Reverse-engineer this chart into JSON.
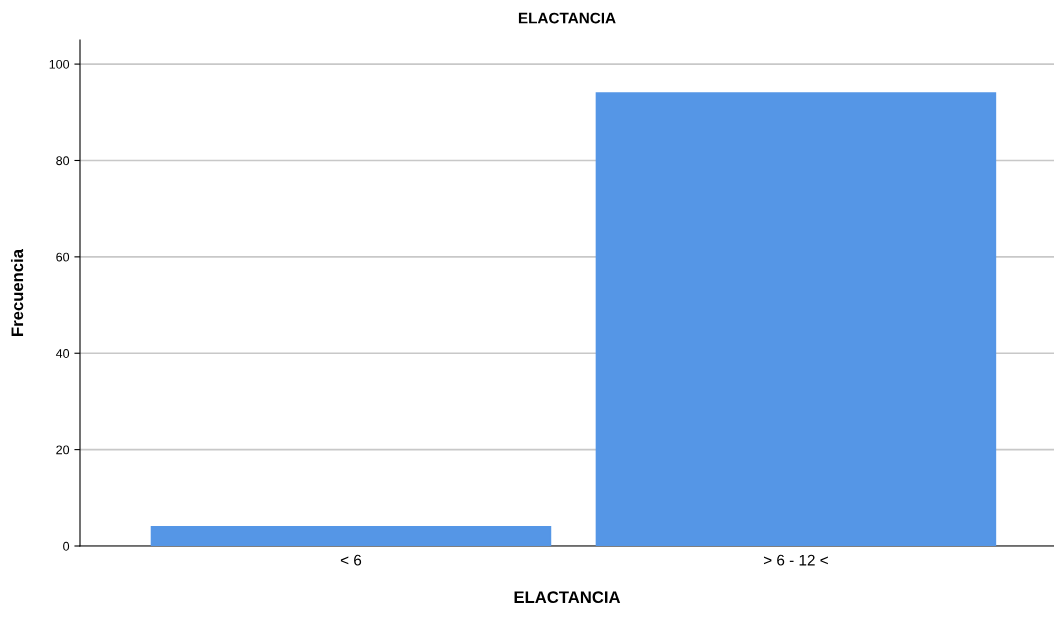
{
  "chart_data": {
    "type": "bar",
    "title": "ELACTANCIA",
    "xlabel": "ELACTANCIA",
    "ylabel": "Frecuencia",
    "categories": [
      "< 6",
      "> 6 - 12 <"
    ],
    "values": [
      4,
      94
    ],
    "color": "#5596e6",
    "ylim": [
      0,
      105
    ],
    "yticks": [
      0,
      20,
      40,
      60,
      80,
      100
    ],
    "grid": "y"
  }
}
